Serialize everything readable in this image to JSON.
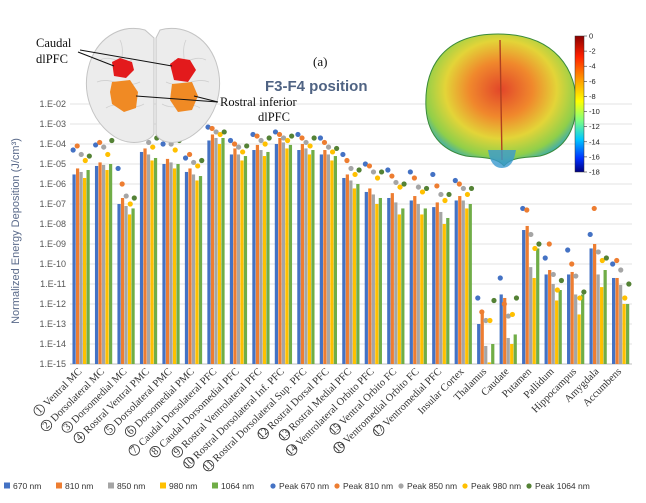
{
  "chart_data": {
    "type": "bar",
    "title": "F3-F4 position",
    "panel_label": "(a)",
    "ylabel": "Normalized Energy Deposition (J/cm³)",
    "yscale": "log",
    "ylim_exp": [
      -15,
      -2
    ],
    "ytick_labels": [
      "1.E-15",
      "1.E-14",
      "1.E-13",
      "1.E-12",
      "1.E-11",
      "1.E-10",
      "1.E-09",
      "1.E-08",
      "1.E-07",
      "1.E-06",
      "1.E-05",
      "1.E-04",
      "1.E-03",
      "1.E-02"
    ],
    "grid": true,
    "legend_position": "bottom",
    "categories": [
      {
        "num": "1",
        "label": "Ventral MC"
      },
      {
        "num": "2",
        "label": "Dorsolateral MC"
      },
      {
        "num": "3",
        "label": "Dorsomedial MC"
      },
      {
        "num": "4",
        "label": "Rostral Ventral PMC"
      },
      {
        "num": "5",
        "label": "Dorsolateral PMC"
      },
      {
        "num": "6",
        "label": "Dorsomedial PMC"
      },
      {
        "num": "7",
        "label": "Caudal Dorsolateral PFC"
      },
      {
        "num": "8",
        "label": "Caudal Dorsomedial PFC"
      },
      {
        "num": "9",
        "label": "Rostral Ventrolateral PFC"
      },
      {
        "num": "10",
        "label": "Rostral Dorsolateral Inf. PFC"
      },
      {
        "num": "11",
        "label": "Rostral Dorsolateral Sup. PFC"
      },
      {
        "num": "12",
        "label": "Rostral Dorsal PFC"
      },
      {
        "num": "13",
        "label": "Rostral Medial PFC"
      },
      {
        "num": "14",
        "label": "Ventrolateral Orbito PFC"
      },
      {
        "num": "15",
        "label": "Ventral Orbito FC"
      },
      {
        "num": "16",
        "label": "Ventromedial Orbito FC"
      },
      {
        "num": "17",
        "label": "Ventromedial PFC"
      },
      {
        "num": "",
        "label": "Insular Cortex"
      },
      {
        "num": "",
        "label": "Thalamus"
      },
      {
        "num": "",
        "label": "Caudate"
      },
      {
        "num": "",
        "label": "Putamen"
      },
      {
        "num": "",
        "label": "Pallidum"
      },
      {
        "num": "",
        "label": "Hippocampus"
      },
      {
        "num": "",
        "label": "Amygdala"
      },
      {
        "num": "",
        "label": "Accumbens"
      }
    ],
    "series": [
      {
        "name": "670 nm",
        "color": "#4472c4",
        "values": [
          3e-06,
          8e-06,
          1e-07,
          4e-05,
          1e-05,
          4e-06,
          0.00015,
          3e-05,
          5e-05,
          0.0001,
          5e-05,
          3e-05,
          2e-06,
          4e-07,
          2e-07,
          1.5e-07,
          7e-08,
          1.5e-07,
          1e-13,
          3e-12,
          5e-09,
          3e-11,
          3e-11,
          6e-10,
          2e-11
        ]
      },
      {
        "name": "810 nm",
        "color": "#ed7d31",
        "values": [
          6e-06,
          1.2e-05,
          2e-07,
          6e-05,
          1.8e-05,
          6e-06,
          0.0003,
          6e-05,
          9e-05,
          0.0002,
          0.0001,
          5e-05,
          3e-06,
          6e-07,
          3.5e-07,
          2.5e-07,
          1.2e-07,
          2.5e-07,
          4e-13,
          2e-12,
          8e-09,
          5e-11,
          4e-11,
          1e-09,
          2e-11
        ]
      },
      {
        "name": "850 nm",
        "color": "#a5a5a5",
        "values": [
          4e-06,
          9e-06,
          8e-08,
          3e-05,
          1.2e-05,
          3e-06,
          0.0002,
          3e-05,
          5e-05,
          0.00012,
          6e-05,
          3e-05,
          1.5e-06,
          3e-07,
          1.2e-07,
          1e-07,
          4e-08,
          1.5e-07,
          8e-15,
          2e-14,
          7e-11,
          1e-11,
          3e-12,
          3e-11,
          9e-12
        ]
      },
      {
        "name": "980 nm",
        "color": "#ffc000",
        "values": [
          2e-06,
          5e-06,
          3e-08,
          1.5e-05,
          6e-06,
          1.5e-06,
          0.0001,
          1.5e-05,
          2.5e-05,
          6e-05,
          3e-05,
          1.5e-05,
          6e-07,
          1e-07,
          3e-08,
          3e-08,
          1e-08,
          6e-08,
          1.2e-15,
          1e-14,
          2e-11,
          1.5e-12,
          3e-13,
          7e-12,
          1e-12
        ]
      },
      {
        "name": "1064 nm",
        "color": "#70ad47",
        "values": [
          5e-06,
          1e-05,
          6e-08,
          2e-05,
          1e-05,
          2.5e-06,
          0.0002,
          2.5e-05,
          4e-05,
          9e-05,
          5e-05,
          2.5e-05,
          1e-06,
          2e-07,
          6e-08,
          6e-08,
          2e-08,
          1e-07,
          1e-14,
          3e-14,
          6e-10,
          5e-12,
          3e-12,
          5e-11,
          1e-12
        ]
      },
      {
        "name": "Peak 670 nm",
        "color": "#4472c4",
        "marker": true,
        "values": [
          5e-05,
          9e-05,
          6e-06,
          0.0002,
          0.0001,
          2e-05,
          0.0007,
          0.00015,
          0.0003,
          0.0004,
          0.0003,
          0.0002,
          3e-05,
          1e-05,
          5e-06,
          4e-06,
          3e-06,
          1.5e-06,
          2e-12,
          2e-11,
          6e-08,
          2e-10,
          5e-10,
          3e-09,
          1e-10
        ]
      },
      {
        "name": "Peak 810 nm",
        "color": "#ed7d31",
        "marker": true,
        "values": [
          8e-05,
          0.00012,
          1e-06,
          0.00025,
          0.0002,
          3e-05,
          0.0006,
          0.0001,
          0.00025,
          0.0003,
          0.0002,
          0.00012,
          1.5e-05,
          8e-06,
          2.5e-06,
          2e-06,
          8e-07,
          1e-06,
          4e-13,
          1e-12,
          5e-08,
          1e-09,
          1e-10,
          6e-08,
          1.5e-10
        ]
      },
      {
        "name": "Peak 850 nm",
        "color": "#a5a5a5",
        "marker": true,
        "values": [
          3e-05,
          7e-05,
          2.5e-07,
          0.00012,
          0.0001,
          1.2e-05,
          0.0004,
          7e-05,
          0.00015,
          0.0002,
          0.00012,
          7e-05,
          6e-06,
          4e-06,
          1.2e-06,
          7e-07,
          3e-07,
          6e-07,
          1.5e-13,
          2.5e-13,
          3e-09,
          3e-11,
          2.5e-11,
          4e-10,
          5e-11
        ]
      },
      {
        "name": "Peak 980 nm",
        "color": "#ffc000",
        "marker": true,
        "values": [
          1.5e-05,
          3e-05,
          1e-07,
          7e-05,
          5e-05,
          8e-06,
          0.0003,
          4e-05,
          0.0001,
          0.00015,
          8e-05,
          4e-05,
          3e-06,
          2e-06,
          7e-07,
          4e-07,
          1.5e-07,
          3e-07,
          1.5e-13,
          3e-13,
          6e-10,
          5e-12,
          2e-12,
          1.5e-10,
          2e-12
        ]
      },
      {
        "name": "Peak 1064 nm",
        "color": "#548235",
        "marker": true,
        "values": [
          2.5e-05,
          0.00015,
          2e-07,
          0.0002,
          0.00015,
          1.5e-05,
          0.0004,
          8e-05,
          0.0002,
          0.00025,
          0.0002,
          6e-05,
          5e-06,
          4e-06,
          1e-06,
          6e-07,
          3e-07,
          6e-07,
          1.5e-12,
          2e-12,
          1e-09,
          1.5e-11,
          4e-12,
          2e-10,
          1e-11
        ]
      }
    ]
  },
  "brain_inset": {
    "label_caudal_line1": "Caudal",
    "label_caudal_line2": "dlPFC",
    "label_rostral_line1": "Rostral inferior",
    "label_rostral_line2": "dlPFC",
    "colors": {
      "caudal": "#e31a1c",
      "rostral": "#f08a24"
    }
  },
  "head_inset": {
    "colorbar_ticks": [
      "0",
      "-2",
      "-4",
      "-6",
      "-8",
      "-10",
      "-12",
      "-14",
      "-16",
      "-18"
    ]
  }
}
